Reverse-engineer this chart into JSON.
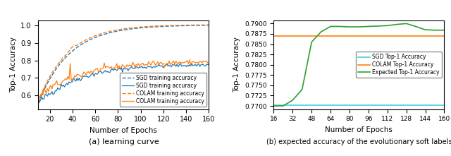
{
  "left_chart": {
    "title": "(a) learning curve",
    "xlabel": "Number of Epochs",
    "ylabel": "Top-1 Accuracy",
    "xlim": [
      10,
      160
    ],
    "ylim": [
      0.52,
      1.03
    ],
    "yticks": [
      0.6,
      0.7,
      0.8,
      0.9,
      1.0
    ],
    "xticks": [
      20,
      40,
      60,
      80,
      100,
      120,
      140,
      160
    ],
    "sgd_color": "#1f77b4",
    "colam_color": "#ff7f0e"
  },
  "right_chart": {
    "title": "(b) expected accuracy of the evolutionary soft labels",
    "xlabel": "Number of Epochs",
    "ylabel": "Top-1 Accuracy",
    "xlim": [
      16,
      160
    ],
    "ylim": [
      0.7692,
      0.7908
    ],
    "yticks": [
      0.77,
      0.7725,
      0.775,
      0.7775,
      0.78,
      0.7825,
      0.785,
      0.7875,
      0.79
    ],
    "xticks": [
      16,
      32,
      48,
      64,
      80,
      96,
      112,
      128,
      144,
      160
    ],
    "sgd_val": 0.7701,
    "colam_val": 0.7869,
    "expected_x": [
      16,
      24,
      32,
      40,
      48,
      56,
      64,
      72,
      80,
      88,
      96,
      104,
      112,
      120,
      128,
      136,
      144,
      152,
      160
    ],
    "expected_y": [
      0.77,
      0.77,
      0.7714,
      0.774,
      0.7855,
      0.788,
      0.7893,
      0.7893,
      0.7892,
      0.7892,
      0.7893,
      0.7894,
      0.7895,
      0.7898,
      0.79,
      0.7893,
      0.7885,
      0.7884,
      0.7884
    ],
    "sgd_color": "#4ec9e8",
    "colam_color": "#ff7f0e",
    "expected_color": "#2ca02c"
  }
}
